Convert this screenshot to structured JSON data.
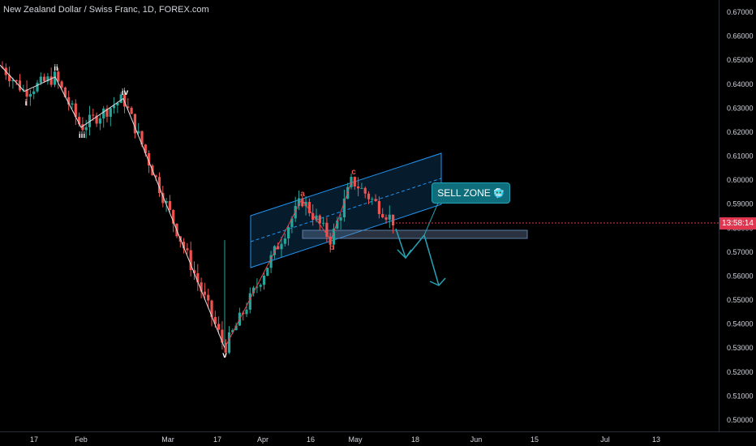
{
  "header": {
    "title": "New Zealand Dollar / Swiss Franc, 1D, FOREX.com"
  },
  "price_axis": {
    "labels": [
      "0.67000",
      "0.66000",
      "0.65000",
      "0.64000",
      "0.63000",
      "0.62000",
      "0.61000",
      "0.60000",
      "0.59000",
      "0.58000",
      "0.57000",
      "0.56000",
      "0.55000",
      "0.54000",
      "0.53000",
      "0.52000",
      "0.51000",
      "0.50000"
    ],
    "min": 0.5,
    "max": 0.67
  },
  "time_axis": {
    "labels": [
      "17",
      "Feb",
      "Mar",
      "17",
      "Apr",
      "16",
      "May",
      "18",
      "Jun",
      "15",
      "Jul",
      "13"
    ]
  },
  "current_price_badge": {
    "text": "13:58:14",
    "color": "#e0364f"
  },
  "annotation": {
    "label": "SELL ZONE",
    "emoji": "🥶"
  },
  "wave_labels": {
    "impulse": [
      "i",
      "ii",
      "iii",
      "iv",
      "v"
    ],
    "correction": [
      "a",
      "b",
      "c"
    ]
  },
  "colors": {
    "bull": "#26a69a",
    "bear": "#ef5350",
    "channel": "#2962ff",
    "teal": "#26a2b5",
    "background": "#000000",
    "grid_text": "#d1d4dc"
  },
  "chart_data": {
    "type": "candlestick",
    "title": "New Zealand Dollar / Swiss Franc, 1D, FOREX.com",
    "ylim": [
      0.5,
      0.67
    ],
    "elliott_wave": [
      {
        "label": "i",
        "price": 0.637
      },
      {
        "label": "ii",
        "price": 0.643
      },
      {
        "label": "iii",
        "price": 0.622
      },
      {
        "label": "iv",
        "price": 0.634
      },
      {
        "label": "v",
        "price": 0.53
      },
      {
        "label": "a",
        "price": 0.592
      },
      {
        "label": "b",
        "price": 0.575
      },
      {
        "label": "c",
        "price": 0.6
      }
    ],
    "sell_zone_range": [
      0.576,
      0.579
    ]
  }
}
